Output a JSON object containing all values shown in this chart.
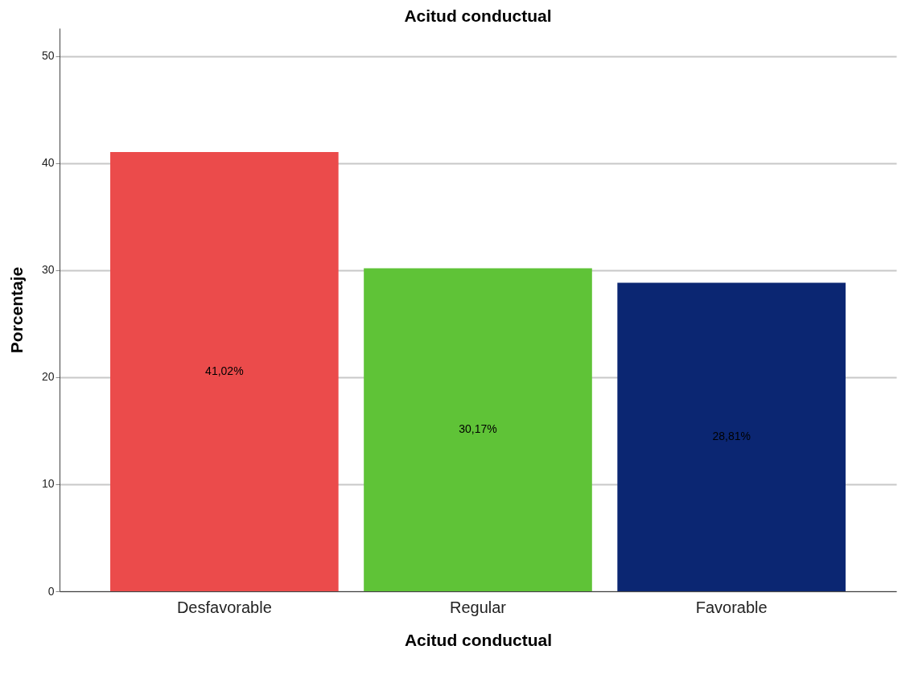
{
  "chart_data": {
    "type": "bar",
    "title": "Acitud conductual",
    "xlabel": "Acitud conductual",
    "ylabel": "Porcentaje",
    "categories": [
      "Desfavorable",
      "Regular",
      "Favorable"
    ],
    "values": [
      41.02,
      30.17,
      28.81
    ],
    "colors": [
      "#eb4b4b",
      "#5fc337",
      "#0b2672"
    ],
    "value_labels": [
      "41,02%",
      "30,17%",
      "28,81%"
    ],
    "ylim": [
      0,
      52.6
    ],
    "yticks": [
      0,
      10,
      20,
      30,
      40,
      50
    ],
    "grid": "y"
  }
}
